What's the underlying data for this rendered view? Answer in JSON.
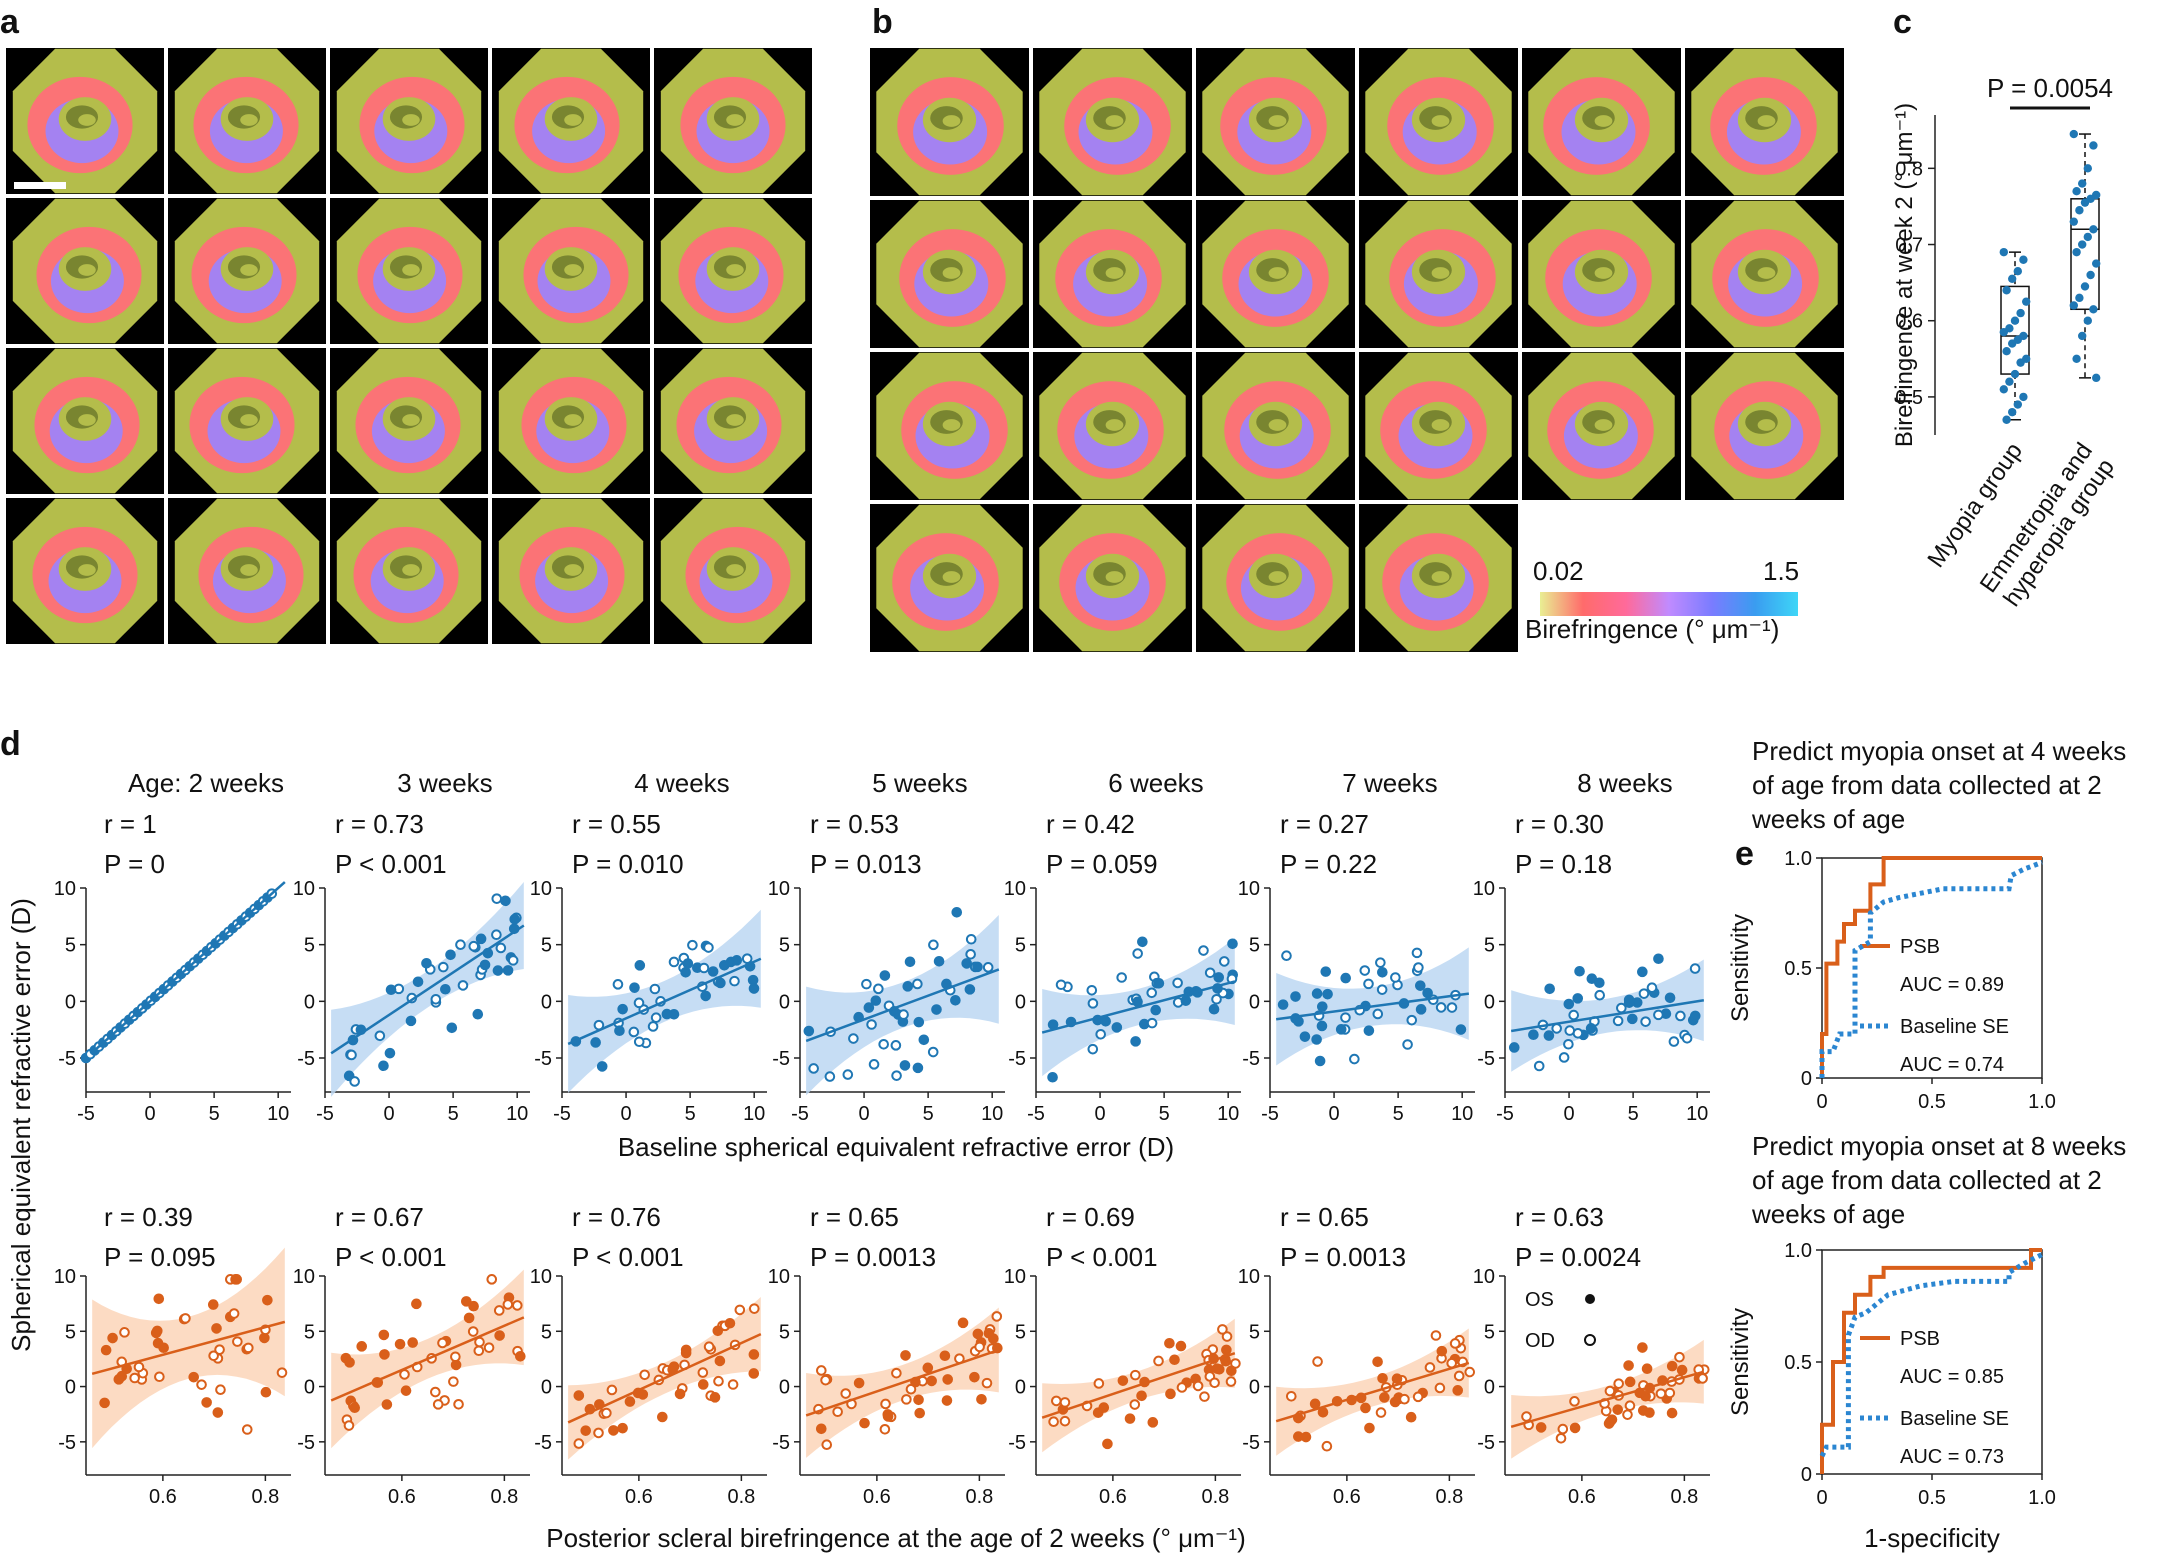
{
  "panels": {
    "a": "a",
    "b": "b",
    "c": "c",
    "d": "d",
    "e": "e"
  },
  "images": {
    "a_rows": 4,
    "a_cols": 5,
    "b_row_counts": [
      6,
      6,
      6,
      4
    ],
    "colorbar": {
      "min_label": "0.02",
      "max_label": "1.5",
      "label": "Birefringence (° μm⁻¹)",
      "colors": [
        "#e9ef93",
        "#ff6b6b",
        "#ff6a9a",
        "#c08bff",
        "#7a7cff",
        "#3a9cf0",
        "#3ed6f7"
      ]
    },
    "colors": {
      "tissue": "#b4bd4b",
      "ring": "#ff6f78",
      "inner": "#9a84ff",
      "dark": "#6f7b2b",
      "bg": "#000000"
    }
  },
  "colors": {
    "blue": "#1f77b4",
    "orange": "#d95f1a",
    "blue_band": "#bcd7f2",
    "orange_band": "#fbd5b8"
  },
  "chart_data": [
    {
      "id": "c",
      "type": "box",
      "ylabel": "Birefringence at week 2 (° μm⁻¹)",
      "ylim": [
        0.45,
        0.87
      ],
      "yticks": [
        "0.5",
        "0.6",
        "0.7",
        "0.8"
      ],
      "categories": [
        "Myopia group",
        "Emmetropia and hyperopia group"
      ],
      "significance": "P = 0.0054",
      "boxes": [
        {
          "q1": 0.53,
          "median": 0.58,
          "q3": 0.645,
          "min": 0.47,
          "max": 0.69,
          "points": [
            0.69,
            0.68,
            0.665,
            0.655,
            0.64,
            0.625,
            0.61,
            0.6,
            0.59,
            0.585,
            0.58,
            0.575,
            0.57,
            0.56,
            0.55,
            0.545,
            0.53,
            0.52,
            0.51,
            0.5,
            0.49,
            0.48,
            0.47
          ]
        },
        {
          "q1": 0.615,
          "median": 0.72,
          "q3": 0.76,
          "min": 0.525,
          "max": 0.845,
          "points": [
            0.845,
            0.83,
            0.8,
            0.78,
            0.77,
            0.765,
            0.76,
            0.755,
            0.745,
            0.73,
            0.72,
            0.71,
            0.7,
            0.69,
            0.675,
            0.66,
            0.645,
            0.63,
            0.62,
            0.615,
            0.6,
            0.58,
            0.55,
            0.525
          ]
        }
      ]
    },
    {
      "id": "d-top",
      "type": "scatter",
      "xlabel": "Baseline spherical equivalent refractive error (D)",
      "ylabel": "Spherical equivalent refractive error (D)",
      "xlim": [
        -5,
        11
      ],
      "ylim": [
        -8,
        10
      ],
      "xticks": [
        "-5",
        "0",
        "5",
        "10"
      ],
      "yticks": [
        "10",
        "5",
        "0",
        "-5"
      ],
      "titles": [
        "Age: 2 weeks",
        "3 weeks",
        "4 weeks",
        "5 weeks",
        "6 weeks",
        "7 weeks",
        "8 weeks"
      ],
      "r_labels": [
        "r = 1",
        "r = 0.73",
        "r = 0.55",
        "r = 0.53",
        "r = 0.42",
        "r = 0.27",
        "r = 0.30"
      ],
      "p_labels": [
        "P = 0",
        "P < 0.001",
        "P = 0.010",
        "P = 0.013",
        "P = 0.059",
        "P = 0.22",
        "P = 0.18"
      ],
      "fit": [
        [
          1.0,
          0.0
        ],
        [
          0.75,
          -1.2
        ],
        [
          0.5,
          -1.5
        ],
        [
          0.42,
          -1.6
        ],
        [
          0.3,
          -1.4
        ],
        [
          0.15,
          -0.9
        ],
        [
          0.18,
          -1.8
        ]
      ],
      "band": [
        0.0,
        1.6,
        1.8,
        2.0,
        1.6,
        1.7,
        1.5
      ],
      "noise": [
        0.0,
        2.2,
        2.3,
        2.6,
        2.2,
        2.3,
        2.0
      ]
    },
    {
      "id": "d-bottom",
      "type": "scatter",
      "xlabel": "Posterior scleral birefringence at the age of 2 weeks (° μm⁻¹)",
      "xlim": [
        0.45,
        0.85
      ],
      "ylim": [
        -8,
        10
      ],
      "xticks": [
        "0.6",
        "0.8"
      ],
      "yticks": [
        "10",
        "5",
        "0",
        "-5"
      ],
      "r_labels": [
        "r = 0.39",
        "r = 0.67",
        "r = 0.76",
        "r = 0.65",
        "r = 0.69",
        "r = 0.65",
        "r = 0.63"
      ],
      "p_labels": [
        "P = 0.095",
        "P < 0.001",
        "P < 0.001",
        "P = 0.0013",
        "P < 0.001",
        "P = 0.0013",
        "P = 0.0024"
      ],
      "fit": [
        [
          0.45,
          6.5
        ],
        [
          0.45,
          6.5
        ],
        [
          0.45,
          5.5
        ],
        [
          0.45,
          4.2
        ],
        [
          0.45,
          3.2
        ],
        [
          0.45,
          2.6
        ],
        [
          0.45,
          1.6
        ]
      ],
      "fit_x": [
        0.45,
        0.85
      ],
      "fit_y": [
        [
          1.0,
          6.0
        ],
        [
          -1.5,
          6.5
        ],
        [
          -3.5,
          5.0
        ],
        [
          -2.8,
          3.5
        ],
        [
          -3.0,
          3.2
        ],
        [
          -3.3,
          2.3
        ],
        [
          -3.8,
          1.5
        ]
      ],
      "band": [
        2.8,
        1.8,
        1.4,
        1.6,
        1.3,
        1.3,
        1.2
      ],
      "noise": [
        3.5,
        2.4,
        1.8,
        2.2,
        1.8,
        1.7,
        1.6
      ],
      "legend": {
        "os": "OS",
        "od": "OD"
      }
    },
    {
      "id": "e",
      "type": "line",
      "xlabel": "1-specificity",
      "ylabel": "Sensitivity",
      "xlim": [
        0,
        1
      ],
      "ylim": [
        0,
        1
      ],
      "xticks": [
        "0",
        "0.5",
        "1.0"
      ],
      "yticks": [
        "0",
        "0.5",
        "1.0"
      ],
      "subplots": [
        {
          "title": [
            "Predict myopia onset at 4 weeks",
            "of age from data collected at 2",
            "weeks of age"
          ],
          "series": [
            {
              "name": "PSB",
              "auc": "AUC = 0.89",
              "x": [
                0,
                0,
                0.02,
                0.02,
                0.07,
                0.07,
                0.1,
                0.1,
                0.15,
                0.15,
                0.22,
                0.22,
                0.28,
                0.28,
                1.0
              ],
              "y": [
                0,
                0.2,
                0.2,
                0.52,
                0.52,
                0.62,
                0.62,
                0.7,
                0.7,
                0.76,
                0.76,
                0.88,
                0.88,
                1.0,
                1.0
              ]
            },
            {
              "name": "Baseline SE",
              "auc": "AUC = 0.74",
              "x": [
                0,
                0,
                0.05,
                0.08,
                0.15,
                0.15,
                0.22,
                0.22,
                0.28,
                0.35,
                0.45,
                0.55,
                0.7,
                0.85,
                0.86,
                0.92,
                1.0
              ],
              "y": [
                0,
                0.12,
                0.12,
                0.2,
                0.2,
                0.58,
                0.62,
                0.75,
                0.8,
                0.82,
                0.84,
                0.86,
                0.86,
                0.86,
                0.92,
                0.95,
                0.98
              ]
            }
          ]
        },
        {
          "title": [
            "Predict myopia onset at 8 weeks",
            "of age from data collected at 2",
            "weeks of age"
          ],
          "series": [
            {
              "name": "PSB",
              "auc": "AUC = 0.85",
              "x": [
                0,
                0,
                0.05,
                0.05,
                0.1,
                0.1,
                0.15,
                0.15,
                0.22,
                0.22,
                0.28,
                0.28,
                0.95,
                0.95,
                1.0
              ],
              "y": [
                0,
                0.22,
                0.22,
                0.5,
                0.5,
                0.72,
                0.72,
                0.8,
                0.8,
                0.88,
                0.88,
                0.92,
                0.92,
                1.0,
                1.0
              ]
            },
            {
              "name": "Baseline SE",
              "auc": "AUC = 0.73",
              "x": [
                0,
                0.02,
                0.12,
                0.12,
                0.15,
                0.2,
                0.3,
                0.45,
                0.6,
                0.85,
                0.85,
                0.92,
                1.0
              ],
              "y": [
                0.08,
                0.12,
                0.12,
                0.62,
                0.7,
                0.72,
                0.8,
                0.84,
                0.86,
                0.86,
                0.9,
                0.94,
                0.98
              ]
            }
          ]
        }
      ]
    }
  ]
}
